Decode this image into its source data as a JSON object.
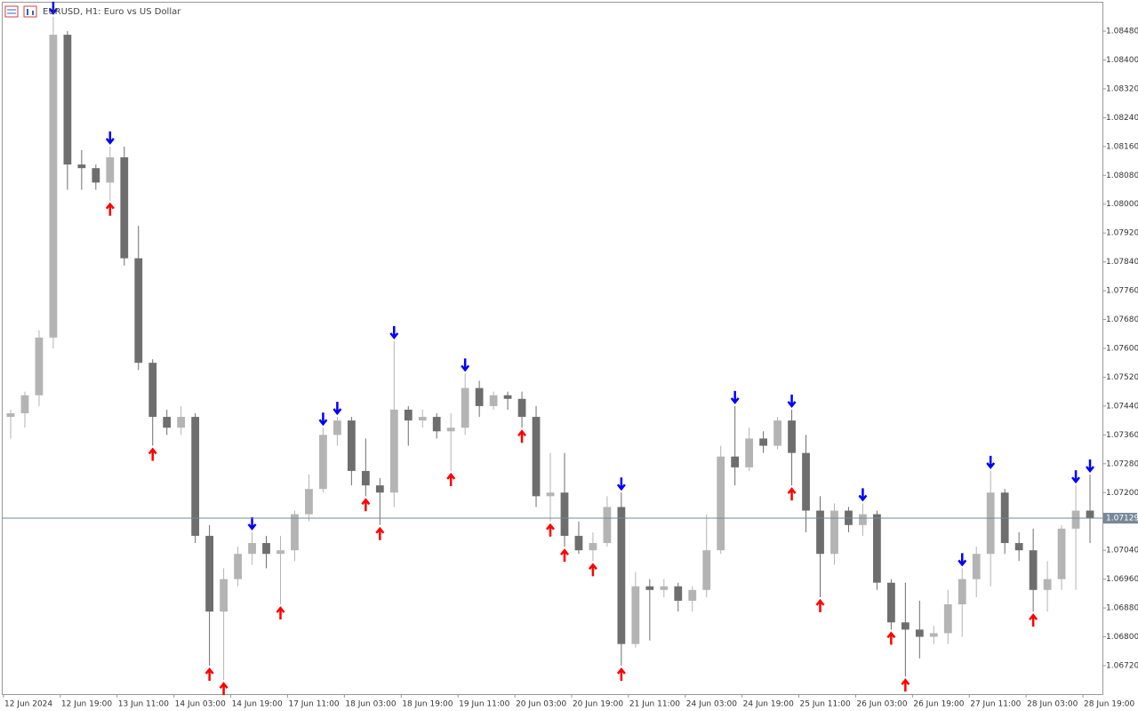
{
  "chart_data": {
    "type": "candlestick",
    "title": "EURUSD, H1:  Euro vs US Dollar",
    "open": [
      1.0741,
      1.0742,
      1.0747,
      1.0763,
      1.0847,
      1.0811,
      1.081,
      1.0806,
      1.0813,
      1.0785,
      1.0756,
      1.0741,
      1.0738,
      1.0741,
      1.0708,
      1.0687,
      1.0696,
      1.0703,
      1.0706,
      1.0703,
      1.0704,
      1.0714,
      1.0721,
      1.0736,
      1.074,
      1.0726,
      1.0722,
      1.072,
      1.0743,
      1.074,
      1.0741,
      1.0737,
      1.0738,
      1.0749,
      1.0744,
      1.0747,
      1.0746,
      1.0741,
      1.0719,
      1.072,
      1.0708,
      1.0704,
      1.0706,
      1.0716,
      1.0678,
      1.0694,
      1.0693,
      1.0694,
      1.069,
      1.0693,
      1.0704,
      1.073,
      1.0727,
      1.0735,
      1.0733,
      1.074,
      1.0731,
      1.0715,
      1.0703,
      1.0715,
      1.0711,
      1.0714,
      1.0695,
      1.0684,
      1.0682,
      1.068,
      1.0681,
      1.0689,
      1.0696,
      1.0703,
      1.072,
      1.0706,
      1.0704,
      1.0693,
      1.0696,
      1.071,
      1.0715
    ],
    "high": [
      1.0743,
      1.0748,
      1.0765,
      1.0852,
      1.0848,
      1.0815,
      1.0811,
      1.0816,
      1.0816,
      1.0794,
      1.0757,
      1.0743,
      1.0744,
      1.0742,
      1.0711,
      1.0699,
      1.0705,
      1.0709,
      1.0708,
      1.0708,
      1.0715,
      1.0725,
      1.0738,
      1.0741,
      1.0741,
      1.0735,
      1.0724,
      1.0762,
      1.0744,
      1.0743,
      1.0742,
      1.0742,
      1.0753,
      1.0751,
      1.0748,
      1.0748,
      1.0748,
      1.0744,
      1.0731,
      1.0731,
      1.0712,
      1.0709,
      1.0719,
      1.072,
      1.0698,
      1.0696,
      1.0696,
      1.0695,
      1.0694,
      1.0714,
      1.0733,
      1.0744,
      1.0738,
      1.0737,
      1.0741,
      1.0743,
      1.0736,
      1.0719,
      1.0717,
      1.0716,
      1.0717,
      1.0715,
      1.0696,
      1.0695,
      1.069,
      1.0683,
      1.0693,
      1.0699,
      1.0705,
      1.0726,
      1.0721,
      1.0709,
      1.071,
      1.0701,
      1.0711,
      1.0722,
      1.0725
    ],
    "low": [
      1.0735,
      1.0738,
      1.0744,
      1.076,
      1.0804,
      1.0804,
      1.0804,
      1.0801,
      1.0783,
      1.0754,
      1.0733,
      1.0736,
      1.0736,
      1.0706,
      1.0672,
      1.0668,
      1.0694,
      1.07,
      1.0699,
      1.0689,
      1.0701,
      1.0712,
      1.072,
      1.0733,
      1.0722,
      1.0719,
      1.0711,
      1.0716,
      1.0733,
      1.0738,
      1.0735,
      1.0726,
      1.0736,
      1.0741,
      1.0743,
      1.0743,
      1.0738,
      1.0716,
      1.0712,
      1.0705,
      1.0703,
      1.0701,
      1.0705,
      1.0672,
      1.0677,
      1.0679,
      1.0691,
      1.0687,
      1.0687,
      1.0691,
      1.0703,
      1.0722,
      1.0726,
      1.0731,
      1.0732,
      1.0722,
      1.0709,
      1.0691,
      1.07,
      1.0709,
      1.0708,
      1.0693,
      1.0682,
      1.0669,
      1.0674,
      1.0678,
      1.0678,
      1.068,
      1.0691,
      1.0694,
      1.0703,
      1.0701,
      1.0687,
      1.0687,
      1.0693,
      1.0693,
      1.0706
    ],
    "close": [
      1.0742,
      1.0747,
      1.0763,
      1.0847,
      1.0811,
      1.081,
      1.0806,
      1.0813,
      1.0785,
      1.0756,
      1.0741,
      1.0738,
      1.0741,
      1.0708,
      1.0687,
      1.0696,
      1.0703,
      1.0706,
      1.0703,
      1.0704,
      1.0714,
      1.0721,
      1.0736,
      1.074,
      1.0726,
      1.0722,
      1.072,
      1.0743,
      1.074,
      1.0741,
      1.0737,
      1.0738,
      1.0749,
      1.0744,
      1.0747,
      1.0746,
      1.0741,
      1.0719,
      1.072,
      1.0708,
      1.0704,
      1.0706,
      1.0716,
      1.0678,
      1.0694,
      1.0693,
      1.0694,
      1.069,
      1.0693,
      1.0704,
      1.073,
      1.0727,
      1.0735,
      1.0733,
      1.074,
      1.0731,
      1.0715,
      1.0703,
      1.0715,
      1.0711,
      1.0714,
      1.0695,
      1.0684,
      1.0682,
      1.068,
      1.0681,
      1.0689,
      1.0696,
      1.0703,
      1.072,
      1.0706,
      1.0704,
      1.0693,
      1.0696,
      1.071,
      1.0715,
      1.0713
    ],
    "up_color": "#b4b4b4",
    "down_color": "#6e6e6e",
    "xlim": [
      -0.125,
      77.375
    ],
    "ylim": [
      1.06641,
      1.08559
    ],
    "yticks": [
      {
        "value": 1.0848,
        "label": "1.08480"
      },
      {
        "value": 1.084,
        "label": "1.08400"
      },
      {
        "value": 1.0832,
        "label": "1.08320"
      },
      {
        "value": 1.0824,
        "label": "1.08240"
      },
      {
        "value": 1.0816,
        "label": "1.08160"
      },
      {
        "value": 1.0808,
        "label": "1.08080"
      },
      {
        "value": 1.08,
        "label": "1.08000"
      },
      {
        "value": 1.0792,
        "label": "1.07920"
      },
      {
        "value": 1.0784,
        "label": "1.07840"
      },
      {
        "value": 1.0776,
        "label": "1.07760"
      },
      {
        "value": 1.0768,
        "label": "1.07680"
      },
      {
        "value": 1.076,
        "label": "1.07600"
      },
      {
        "value": 1.0752,
        "label": "1.07520"
      },
      {
        "value": 1.0744,
        "label": "1.07440"
      },
      {
        "value": 1.0736,
        "label": "1.07360"
      },
      {
        "value": 1.0728,
        "label": "1.07280"
      },
      {
        "value": 1.072,
        "label": "1.07200"
      },
      {
        "value": 1.0712,
        "label": "1.07120"
      },
      {
        "value": 1.0704,
        "label": "1.07040"
      },
      {
        "value": 1.0696,
        "label": "1.06960"
      },
      {
        "value": 1.0688,
        "label": "1.06880"
      },
      {
        "value": 1.068,
        "label": "1.06800"
      },
      {
        "value": 1.0672,
        "label": "1.06720"
      }
    ],
    "xticks": [
      {
        "value": 0,
        "label": "12 Jun 2024"
      },
      {
        "value": 4,
        "label": "12 Jun 19:00"
      },
      {
        "value": 8,
        "label": "13 Jun 11:00"
      },
      {
        "value": 12,
        "label": "14 Jun 03:00"
      },
      {
        "value": 16,
        "label": "14 Jun 19:00"
      },
      {
        "value": 20,
        "label": "17 Jun 11:00"
      },
      {
        "value": 24,
        "label": "18 Jun 03:00"
      },
      {
        "value": 28,
        "label": "18 Jun 19:00"
      },
      {
        "value": 32,
        "label": "19 Jun 11:00"
      },
      {
        "value": 36,
        "label": "20 Jun 03:00"
      },
      {
        "value": 40,
        "label": "20 Jun 19:00"
      },
      {
        "value": 44,
        "label": "21 Jun 11:00"
      },
      {
        "value": 48,
        "label": "24 Jun 03:00"
      },
      {
        "value": 52,
        "label": "24 Jun 19:00"
      },
      {
        "value": 56,
        "label": "25 Jun 11:00"
      },
      {
        "value": 60,
        "label": "26 Jun 03:00"
      },
      {
        "value": 64,
        "label": "26 Jun 19:00"
      },
      {
        "value": 68,
        "label": "27 Jun 11:00"
      },
      {
        "value": 72,
        "label": "28 Jun 03:00"
      },
      {
        "value": 76,
        "label": "28 Jun 19:00"
      }
    ],
    "price_line": {
      "value": 1.07129,
      "label": "1.07129",
      "color": "#778899"
    },
    "buy_signals": {
      "color": "#ff0000",
      "x": [
        7,
        10,
        14,
        15,
        19,
        25,
        26,
        31,
        36,
        38,
        39,
        41,
        43,
        55,
        57,
        62,
        63,
        72
      ]
    },
    "sell_signals": {
      "color": "#0000ff",
      "x": [
        3,
        7,
        17,
        22,
        23,
        27,
        32,
        43,
        51,
        55,
        60,
        67,
        69,
        75,
        76
      ]
    }
  }
}
